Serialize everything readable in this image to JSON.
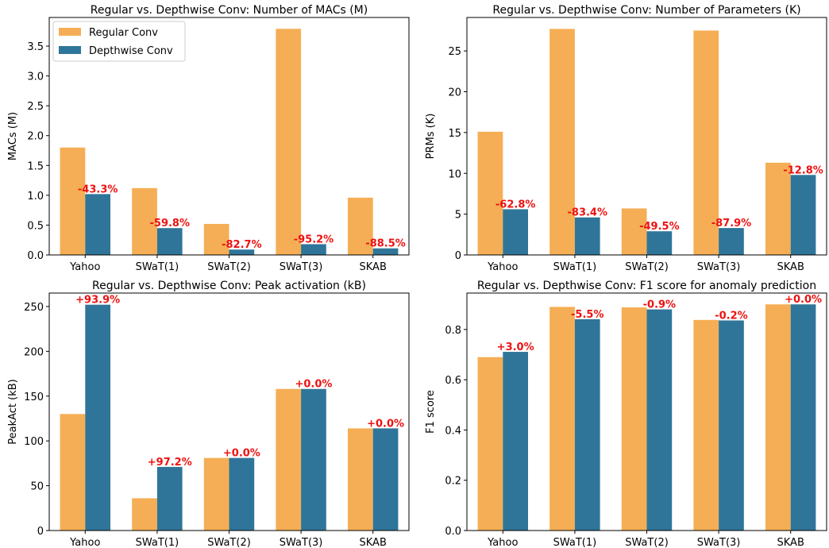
{
  "colors": {
    "regular": "#f5ae55",
    "depthwise": "#2f7599",
    "annotation": "#ee1111"
  },
  "legend": {
    "items": [
      "Regular Conv",
      "Depthwise Conv"
    ],
    "location": "upper-left"
  },
  "chart_data": [
    {
      "type": "bar",
      "title": "Regular vs. Depthwise Conv: Number of MACs (M)",
      "xlabel": "",
      "ylabel": "MACs (M)",
      "categories": [
        "Yahoo",
        "SWaT(1)",
        "SWaT(2)",
        "SWaT(3)",
        "SKAB"
      ],
      "series": [
        {
          "name": "Regular Conv",
          "values": [
            1.8,
            1.12,
            0.52,
            3.79,
            0.96
          ]
        },
        {
          "name": "Depthwise Conv",
          "values": [
            1.02,
            0.45,
            0.09,
            0.18,
            0.11
          ]
        }
      ],
      "annotations": [
        "-43.3%",
        "-59.8%",
        "-82.7%",
        "-95.2%",
        "-88.5%"
      ],
      "ylim": [
        0,
        3.98
      ],
      "yticks": [
        0.0,
        0.5,
        1.0,
        1.5,
        2.0,
        2.5,
        3.0,
        3.5
      ],
      "ytick_labels": [
        "0.0",
        "0.5",
        "1.0",
        "1.5",
        "2.0",
        "2.5",
        "3.0",
        "3.5"
      ],
      "legend": true
    },
    {
      "type": "bar",
      "title": "Regular vs. Depthwise Conv: Number of Parameters (K)",
      "xlabel": "",
      "ylabel": "PRMs (K)",
      "categories": [
        "Yahoo",
        "SWaT(1)",
        "SWaT(2)",
        "SWaT(3)",
        "SKAB"
      ],
      "series": [
        {
          "name": "Regular Conv",
          "values": [
            15.1,
            27.7,
            5.7,
            27.5,
            11.3
          ]
        },
        {
          "name": "Depthwise Conv",
          "values": [
            5.6,
            4.6,
            2.9,
            3.3,
            9.8
          ]
        }
      ],
      "annotations": [
        "-62.8%",
        "-83.4%",
        "-49.5%",
        "-87.9%",
        "-12.8%"
      ],
      "ylim": [
        0,
        29.1
      ],
      "yticks": [
        0,
        5,
        10,
        15,
        20,
        25
      ],
      "ytick_labels": [
        "0",
        "5",
        "10",
        "15",
        "20",
        "25"
      ],
      "legend": false
    },
    {
      "type": "bar",
      "title": "Regular vs. Depthwise Conv: Peak activation (kB)",
      "xlabel": "",
      "ylabel": "PeakAct (kB)",
      "categories": [
        "Yahoo",
        "SWaT(1)",
        "SWaT(2)",
        "SWaT(3)",
        "SKAB"
      ],
      "series": [
        {
          "name": "Regular Conv",
          "values": [
            130,
            36,
            81,
            158,
            114
          ]
        },
        {
          "name": "Depthwise Conv",
          "values": [
            252,
            71,
            81,
            158,
            114
          ]
        }
      ],
      "annotations": [
        "+93.9%",
        "+97.2%",
        "+0.0%",
        "+0.0%",
        "+0.0%"
      ],
      "ylim": [
        0,
        265
      ],
      "yticks": [
        0,
        50,
        100,
        150,
        200,
        250
      ],
      "ytick_labels": [
        "0",
        "50",
        "100",
        "150",
        "200",
        "250"
      ],
      "legend": false
    },
    {
      "type": "bar",
      "title": "Regular vs. Depthwise Conv: F1 score for anomaly prediction",
      "xlabel": "",
      "ylabel": "F1 score",
      "categories": [
        "Yahoo",
        "SWaT(1)",
        "SWaT(2)",
        "SWaT(3)",
        "SKAB"
      ],
      "series": [
        {
          "name": "Regular Conv",
          "values": [
            0.69,
            0.89,
            0.888,
            0.838,
            0.9
          ]
        },
        {
          "name": "Depthwise Conv",
          "values": [
            0.711,
            0.841,
            0.88,
            0.836,
            0.9
          ]
        }
      ],
      "annotations": [
        "+3.0%",
        "-5.5%",
        "-0.9%",
        "-0.2%",
        "+0.0%"
      ],
      "ylim": [
        0,
        0.945
      ],
      "yticks": [
        0.0,
        0.2,
        0.4,
        0.6,
        0.8
      ],
      "ytick_labels": [
        "0.0",
        "0.2",
        "0.4",
        "0.6",
        "0.8"
      ],
      "legend": false
    }
  ]
}
